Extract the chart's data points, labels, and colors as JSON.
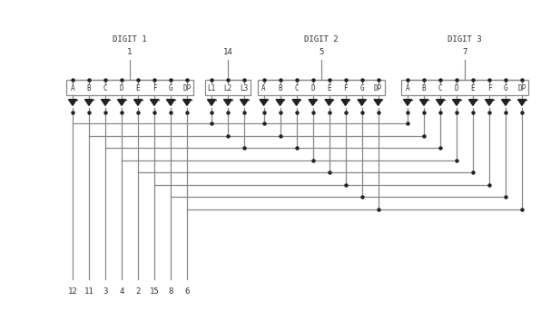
{
  "bg_color": "#ffffff",
  "line_color": "#888888",
  "wire_color": "#888888",
  "text_color": "#333333",
  "dot_color": "#222222",
  "digit1_label": "DIGIT 1",
  "digit2_label": "DIGIT 2",
  "digit3_label": "DIGIT 3",
  "digit1_pin": "1",
  "digit2_pin": "5",
  "digit3_pin": "7",
  "middle_pin": "14",
  "digit1_segments": [
    "A",
    "B",
    "C",
    "D",
    "E",
    "F",
    "G",
    "DP"
  ],
  "middle_segments": [
    "L1",
    "L2",
    "L3"
  ],
  "digit2_segments": [
    "A",
    "B",
    "C",
    "D",
    "E",
    "F",
    "G",
    "DP"
  ],
  "digit3_segments": [
    "A",
    "B",
    "C",
    "D",
    "E",
    "F",
    "G",
    "DP"
  ],
  "bottom_pins": [
    "12",
    "11",
    "3",
    "4",
    "2",
    "15",
    "8",
    "6"
  ],
  "seg_fs": 5.5,
  "lbl_fs": 6.5,
  "pin_fs": 6.5
}
